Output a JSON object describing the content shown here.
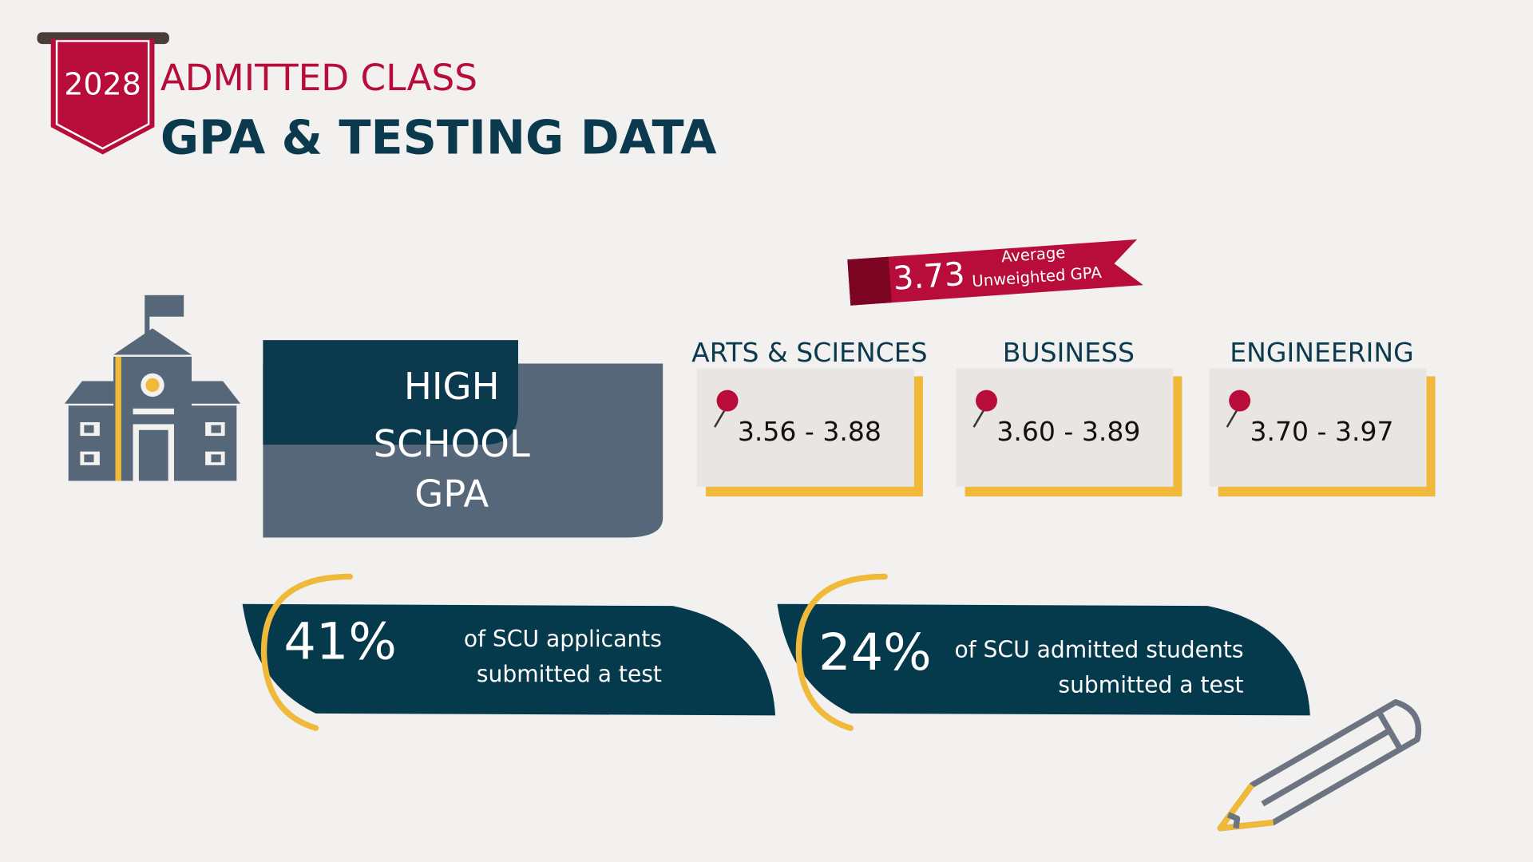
{
  "header": {
    "year": "2028",
    "title": "ADMITTED CLASS",
    "subtitle": "GPA & TESTING DATA"
  },
  "average": {
    "value": "3.73",
    "label": [
      "Average",
      "Unweighted GPA"
    ]
  },
  "gpa_block": {
    "lines": [
      "HIGH",
      "SCHOOL",
      "GPA"
    ]
  },
  "colleges": [
    {
      "name": "ARTS & SCIENCES",
      "range": "3.56 - 3.88"
    },
    {
      "name": "BUSINESS",
      "range": "3.60 - 3.89"
    },
    {
      "name": "ENGINEERING",
      "range": "3.70 - 3.97"
    }
  ],
  "testing": [
    {
      "percent": "41%",
      "text": [
        "of SCU applicants",
        "submitted a test"
      ]
    },
    {
      "percent": "24%",
      "text": [
        "of SCU admitted students",
        "submitted a test"
      ]
    }
  ]
}
